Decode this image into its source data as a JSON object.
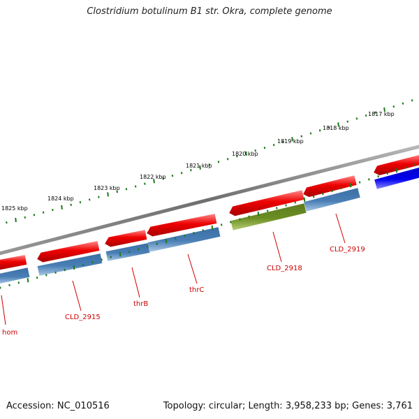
{
  "title": "Clostridium botulinum B1 str. Okra, complete genome",
  "footer": {
    "accession_label": "Accession:",
    "accession": "NC_010516",
    "topology_label": "Topology:",
    "topology": "circular",
    "length_label": "Length:",
    "length": "3,958,233 bp",
    "genes_label": "Genes:",
    "genes": "3,761"
  },
  "colors": {
    "backbone": "#777777",
    "forward_gene": "#ee0000",
    "reverse_gene": "#4a7fb5",
    "highlight_gene": "#6b8e23",
    "other_gene": "#0000dd",
    "tick": "#1b7a1b",
    "gene_label": "#cc0000",
    "scale_label": "#000000"
  },
  "scale_labels": [
    "1825 kbp",
    "1824 kbp",
    "1823 kbp",
    "1822 kbp",
    "1821 kbp",
    "1820 kbp",
    "1819 kbp",
    "1818 kbp",
    "1817 kbp"
  ],
  "gene_labels": [
    "hom",
    "CLD_2915",
    "thrB",
    "thrC",
    "CLD_2918",
    "CLD_2919"
  ]
}
